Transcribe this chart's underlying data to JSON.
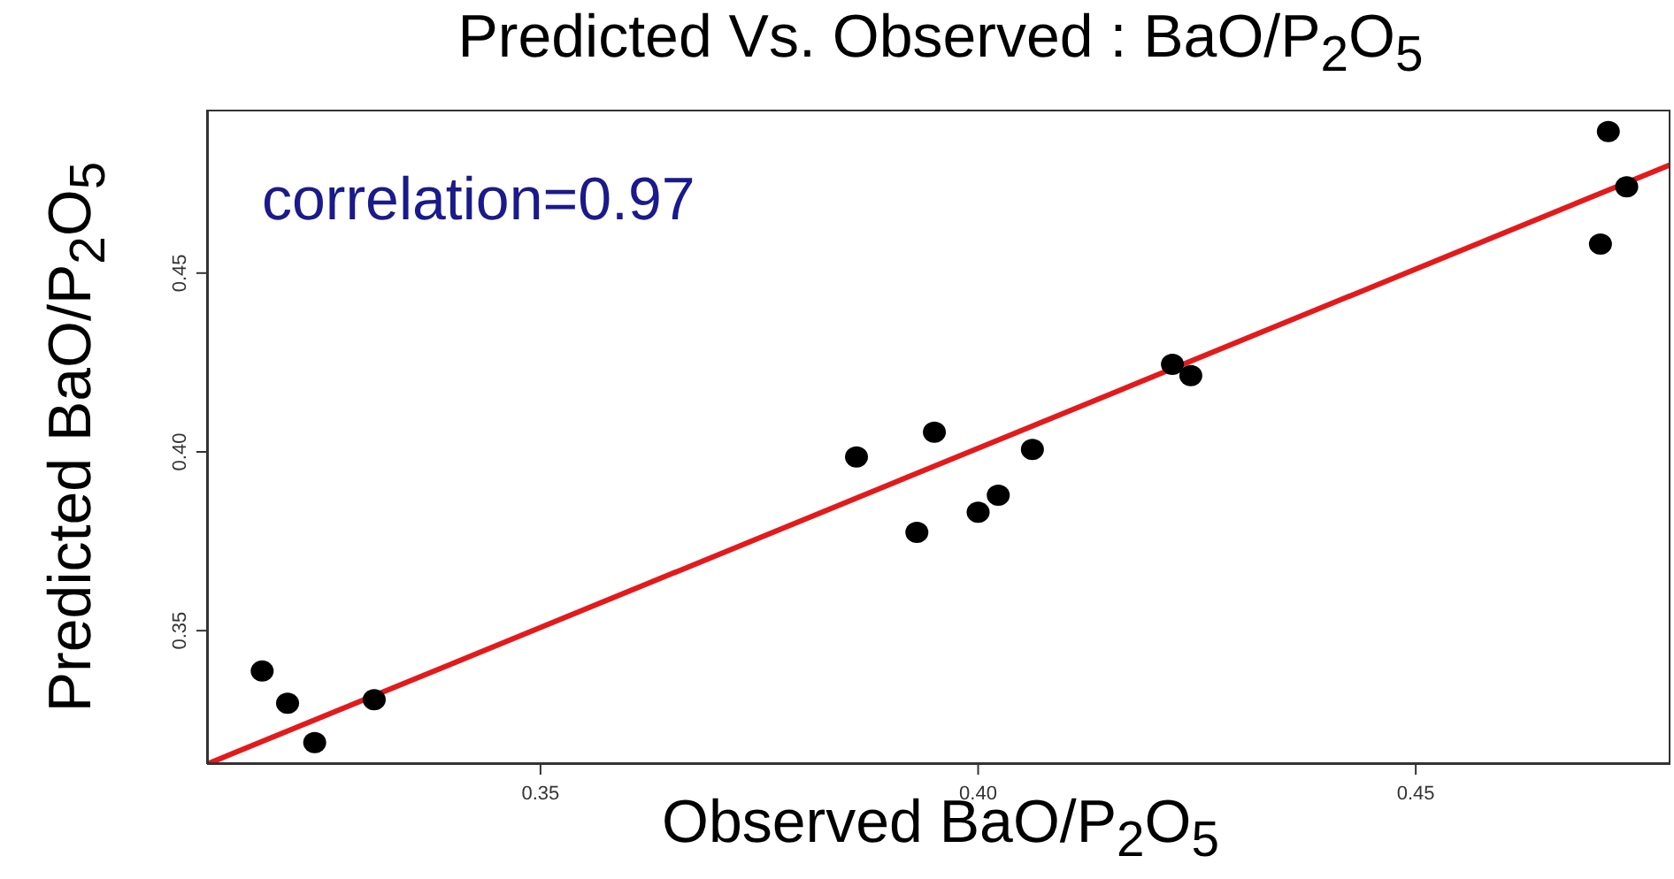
{
  "chart_data": {
    "type": "scatter",
    "title": "Predicted Vs. Observed : BaO/P$_{2}$O$_{5}$",
    "xlabel": "Observed BaO/P$_{2}$O$_{5}$",
    "ylabel": "Predicted BaO/P$_{2}$O$_{5}$",
    "annotations": [
      "correlation=0.97"
    ],
    "x": [
      0.3182,
      0.3211,
      0.3242,
      0.331,
      0.3861,
      0.393,
      0.395,
      0.4,
      0.4023,
      0.4062,
      0.4222,
      0.4243,
      0.4711,
      0.472,
      0.4741
    ],
    "series": [
      {
        "color": "#000000",
        "marker": "circle",
        "values": [
          0.3387,
          0.3297,
          0.3187,
          0.3307,
          0.3986,
          0.3775,
          0.4055,
          0.3831,
          0.3879,
          0.4007,
          0.4245,
          0.4213,
          0.4581,
          0.4896,
          0.4741
        ]
      },
      {
        "type": "line",
        "marker": "none",
        "color": "#e31a1c",
        "x": [
          0.3119,
          0.4791
        ],
        "values": [
          0.3127,
          0.4803
        ]
      }
    ],
    "grid": false,
    "legend": false,
    "xlim": [
      0.3119,
      0.4791
    ],
    "ylim": [
      0.3127,
      0.4957
    ],
    "xticks": [
      {
        "value": 0.35,
        "label": "0.35"
      },
      {
        "value": 0.4,
        "label": "0.40"
      },
      {
        "value": 0.45,
        "label": "0.45"
      }
    ],
    "yticks": [
      {
        "value": 0.35,
        "label": "0.35"
      },
      {
        "value": 0.4,
        "label": "0.40"
      },
      {
        "value": 0.45,
        "label": "0.45"
      }
    ]
  }
}
